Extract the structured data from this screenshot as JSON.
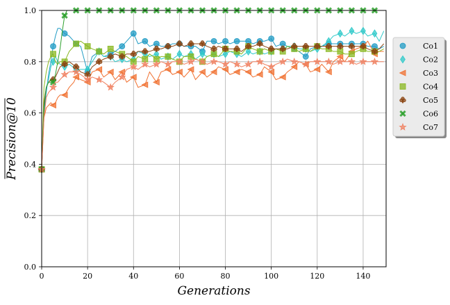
{
  "chart_data": {
    "type": "line",
    "title": "",
    "xlabel": "Generations",
    "ylabel": "Precision@10",
    "xlim": [
      0,
      150
    ],
    "ylim": [
      0,
      1.0
    ],
    "xticks": [
      "0",
      "20",
      "40",
      "60",
      "80",
      "100",
      "120",
      "140"
    ],
    "yticks": [
      "0.0",
      "0.2",
      "0.4",
      "0.6",
      "0.8",
      "1.0"
    ],
    "grid": true,
    "legend_position": "right",
    "marker_every": 5,
    "series": [
      {
        "name": "Co1",
        "color": "#1f9bc4",
        "marker": "circle",
        "x": [
          0,
          1,
          2,
          3,
          4,
          5,
          6,
          7,
          8,
          9,
          10,
          12,
          14,
          15,
          17,
          20,
          22,
          25,
          27,
          30,
          32,
          35,
          37,
          40,
          42,
          45,
          47,
          50,
          52,
          55,
          57,
          60,
          62,
          65,
          67,
          70,
          72,
          75,
          77,
          80,
          82,
          85,
          87,
          90,
          92,
          95,
          97,
          100,
          102,
          105,
          107,
          110,
          112,
          115,
          117,
          120,
          122,
          125,
          127,
          130,
          132,
          135,
          137,
          140,
          142,
          145,
          147,
          149
        ],
        "y": [
          0.38,
          0.6,
          0.68,
          0.75,
          0.8,
          0.86,
          0.9,
          0.93,
          0.93,
          0.92,
          0.91,
          0.9,
          0.88,
          0.87,
          0.86,
          0.76,
          0.82,
          0.84,
          0.82,
          0.83,
          0.84,
          0.86,
          0.88,
          0.91,
          0.87,
          0.88,
          0.86,
          0.87,
          0.86,
          0.86,
          0.87,
          0.87,
          0.86,
          0.86,
          0.86,
          0.84,
          0.88,
          0.88,
          0.87,
          0.88,
          0.87,
          0.88,
          0.88,
          0.88,
          0.87,
          0.88,
          0.88,
          0.89,
          0.86,
          0.87,
          0.86,
          0.85,
          0.84,
          0.82,
          0.85,
          0.86,
          0.86,
          0.87,
          0.87,
          0.87,
          0.87,
          0.87,
          0.87,
          0.87,
          0.86,
          0.86,
          0.85,
          0.86
        ]
      },
      {
        "name": "Co2",
        "color": "#2ec9c9",
        "marker": "diamond",
        "x": [
          0,
          1,
          2,
          3,
          4,
          5,
          6,
          7,
          8,
          10,
          12,
          15,
          17,
          20,
          22,
          25,
          27,
          30,
          32,
          35,
          37,
          40,
          42,
          45,
          47,
          50,
          52,
          55,
          57,
          60,
          62,
          65,
          67,
          70,
          72,
          75,
          77,
          80,
          82,
          85,
          87,
          90,
          92,
          95,
          97,
          100,
          102,
          105,
          107,
          110,
          112,
          115,
          117,
          120,
          122,
          125,
          127,
          130,
          132,
          135,
          137,
          140,
          142,
          145,
          147,
          149
        ],
        "y": [
          0.38,
          0.62,
          0.7,
          0.73,
          0.78,
          0.8,
          0.82,
          0.8,
          0.79,
          0.78,
          0.79,
          0.77,
          0.77,
          0.77,
          0.8,
          0.84,
          0.82,
          0.82,
          0.8,
          0.81,
          0.8,
          0.81,
          0.84,
          0.83,
          0.82,
          0.83,
          0.81,
          0.82,
          0.81,
          0.83,
          0.82,
          0.83,
          0.81,
          0.83,
          0.82,
          0.83,
          0.82,
          0.83,
          0.84,
          0.83,
          0.82,
          0.84,
          0.83,
          0.84,
          0.83,
          0.84,
          0.85,
          0.85,
          0.86,
          0.86,
          0.85,
          0.85,
          0.84,
          0.85,
          0.86,
          0.88,
          0.9,
          0.91,
          0.9,
          0.92,
          0.91,
          0.92,
          0.9,
          0.91,
          0.88,
          0.92
        ]
      },
      {
        "name": "Co3",
        "color": "#f07030",
        "marker": "triangle-left",
        "x": [
          0,
          1,
          2,
          3,
          4,
          5,
          6,
          7,
          8,
          10,
          12,
          14,
          15,
          17,
          20,
          22,
          25,
          27,
          30,
          32,
          35,
          37,
          40,
          42,
          45,
          47,
          50,
          52,
          55,
          57,
          60,
          62,
          65,
          67,
          70,
          72,
          75,
          77,
          80,
          82,
          85,
          87,
          90,
          92,
          95,
          97,
          100,
          102,
          105,
          107,
          110,
          112,
          115,
          117,
          120,
          122,
          125,
          127,
          130,
          132,
          135,
          137,
          140,
          142,
          145,
          147,
          149
        ],
        "y": [
          0.38,
          0.58,
          0.62,
          0.63,
          0.64,
          0.63,
          0.64,
          0.66,
          0.67,
          0.67,
          0.7,
          0.72,
          0.74,
          0.73,
          0.72,
          0.76,
          0.77,
          0.74,
          0.76,
          0.73,
          0.76,
          0.72,
          0.74,
          0.7,
          0.71,
          0.76,
          0.72,
          0.76,
          0.77,
          0.75,
          0.76,
          0.74,
          0.77,
          0.73,
          0.76,
          0.74,
          0.76,
          0.78,
          0.77,
          0.75,
          0.76,
          0.77,
          0.76,
          0.74,
          0.75,
          0.78,
          0.76,
          0.73,
          0.74,
          0.76,
          0.78,
          0.8,
          0.79,
          0.76,
          0.77,
          0.79,
          0.76,
          0.8,
          0.82,
          0.8,
          0.84,
          0.85,
          0.86,
          0.88,
          0.83,
          0.84,
          0.84
        ]
      },
      {
        "name": "Co4",
        "color": "#8ab820",
        "marker": "square",
        "x": [
          0,
          1,
          2,
          3,
          4,
          5,
          6,
          7,
          8,
          10,
          12,
          14,
          15,
          17,
          20,
          22,
          25,
          27,
          30,
          32,
          35,
          37,
          40,
          42,
          45,
          47,
          50,
          52,
          55,
          57,
          60,
          62,
          65,
          67,
          70,
          72,
          75,
          77,
          80,
          82,
          85,
          87,
          90,
          92,
          95,
          97,
          100,
          102,
          105,
          107,
          110,
          112,
          115,
          117,
          120,
          122,
          125,
          127,
          130,
          132,
          135,
          137,
          140,
          142,
          145,
          147,
          149
        ],
        "y": [
          0.38,
          0.7,
          0.76,
          0.8,
          0.82,
          0.83,
          0.8,
          0.79,
          0.8,
          0.8,
          0.84,
          0.86,
          0.87,
          0.88,
          0.86,
          0.85,
          0.84,
          0.83,
          0.85,
          0.84,
          0.83,
          0.82,
          0.8,
          0.82,
          0.81,
          0.83,
          0.81,
          0.82,
          0.82,
          0.81,
          0.8,
          0.82,
          0.82,
          0.81,
          0.8,
          0.82,
          0.83,
          0.82,
          0.85,
          0.84,
          0.84,
          0.83,
          0.86,
          0.85,
          0.84,
          0.85,
          0.84,
          0.85,
          0.84,
          0.86,
          0.85,
          0.84,
          0.85,
          0.84,
          0.86,
          0.85,
          0.85,
          0.84,
          0.84,
          0.83,
          0.83,
          0.84,
          0.85,
          0.84,
          0.84,
          0.84,
          0.85
        ]
      },
      {
        "name": "Co5",
        "color": "#8b4513",
        "marker": "club",
        "x": [
          0,
          1,
          2,
          3,
          4,
          5,
          6,
          7,
          8,
          10,
          12,
          15,
          17,
          20,
          22,
          25,
          27,
          30,
          32,
          35,
          37,
          40,
          42,
          45,
          47,
          50,
          52,
          55,
          57,
          60,
          62,
          65,
          67,
          70,
          72,
          75,
          77,
          80,
          82,
          85,
          87,
          90,
          92,
          95,
          97,
          100,
          102,
          105,
          107,
          110,
          112,
          115,
          117,
          120,
          122,
          125,
          127,
          130,
          132,
          135,
          137,
          140,
          142,
          145,
          147,
          149
        ],
        "y": [
          0.38,
          0.64,
          0.7,
          0.72,
          0.73,
          0.73,
          0.74,
          0.76,
          0.78,
          0.79,
          0.8,
          0.78,
          0.76,
          0.75,
          0.78,
          0.8,
          0.81,
          0.82,
          0.83,
          0.82,
          0.83,
          0.83,
          0.84,
          0.84,
          0.84,
          0.85,
          0.85,
          0.86,
          0.86,
          0.87,
          0.86,
          0.87,
          0.87,
          0.87,
          0.86,
          0.85,
          0.86,
          0.85,
          0.85,
          0.85,
          0.84,
          0.86,
          0.86,
          0.87,
          0.86,
          0.85,
          0.85,
          0.85,
          0.85,
          0.86,
          0.86,
          0.86,
          0.86,
          0.86,
          0.86,
          0.86,
          0.86,
          0.86,
          0.86,
          0.86,
          0.86,
          0.86,
          0.85,
          0.84,
          0.85,
          0.87
        ]
      },
      {
        "name": "Co6",
        "color": "#2ca02c",
        "marker": "x",
        "x": [
          0,
          1,
          2,
          3,
          4,
          5,
          6,
          7,
          8,
          9,
          10,
          11,
          12,
          15,
          20,
          25,
          30,
          35,
          40,
          45,
          50,
          55,
          60,
          65,
          70,
          75,
          80,
          85,
          90,
          95,
          100,
          105,
          110,
          115,
          120,
          125,
          130,
          135,
          140,
          145,
          149
        ],
        "y": [
          0.38,
          0.62,
          0.7,
          0.72,
          0.72,
          0.72,
          0.75,
          0.8,
          0.85,
          0.92,
          0.98,
          1.0,
          1.0,
          1.0,
          1.0,
          1.0,
          1.0,
          1.0,
          1.0,
          1.0,
          1.0,
          1.0,
          1.0,
          1.0,
          1.0,
          1.0,
          1.0,
          1.0,
          1.0,
          1.0,
          1.0,
          1.0,
          1.0,
          1.0,
          1.0,
          1.0,
          1.0,
          1.0,
          1.0,
          1.0,
          1.0
        ]
      },
      {
        "name": "Co7",
        "color": "#f08060",
        "marker": "star",
        "x": [
          0,
          1,
          2,
          3,
          4,
          5,
          6,
          7,
          8,
          10,
          12,
          15,
          17,
          20,
          22,
          25,
          27,
          30,
          32,
          35,
          37,
          40,
          42,
          45,
          47,
          50,
          52,
          55,
          57,
          60,
          62,
          65,
          67,
          70,
          72,
          75,
          77,
          80,
          82,
          85,
          87,
          90,
          92,
          95,
          97,
          100,
          102,
          105,
          107,
          110,
          112,
          115,
          117,
          120,
          122,
          125,
          127,
          130,
          132,
          135,
          137,
          140,
          142,
          145,
          147,
          149
        ],
        "y": [
          0.38,
          0.58,
          0.66,
          0.68,
          0.69,
          0.7,
          0.72,
          0.72,
          0.73,
          0.75,
          0.76,
          0.76,
          0.75,
          0.73,
          0.74,
          0.73,
          0.72,
          0.7,
          0.72,
          0.74,
          0.77,
          0.78,
          0.77,
          0.79,
          0.78,
          0.79,
          0.8,
          0.79,
          0.8,
          0.8,
          0.79,
          0.8,
          0.81,
          0.8,
          0.79,
          0.8,
          0.8,
          0.79,
          0.8,
          0.79,
          0.78,
          0.79,
          0.8,
          0.8,
          0.79,
          0.78,
          0.79,
          0.8,
          0.81,
          0.8,
          0.8,
          0.79,
          0.8,
          0.8,
          0.8,
          0.8,
          0.79,
          0.8,
          0.8,
          0.8,
          0.79,
          0.8,
          0.8,
          0.8,
          0.8,
          0.8
        ]
      }
    ]
  }
}
